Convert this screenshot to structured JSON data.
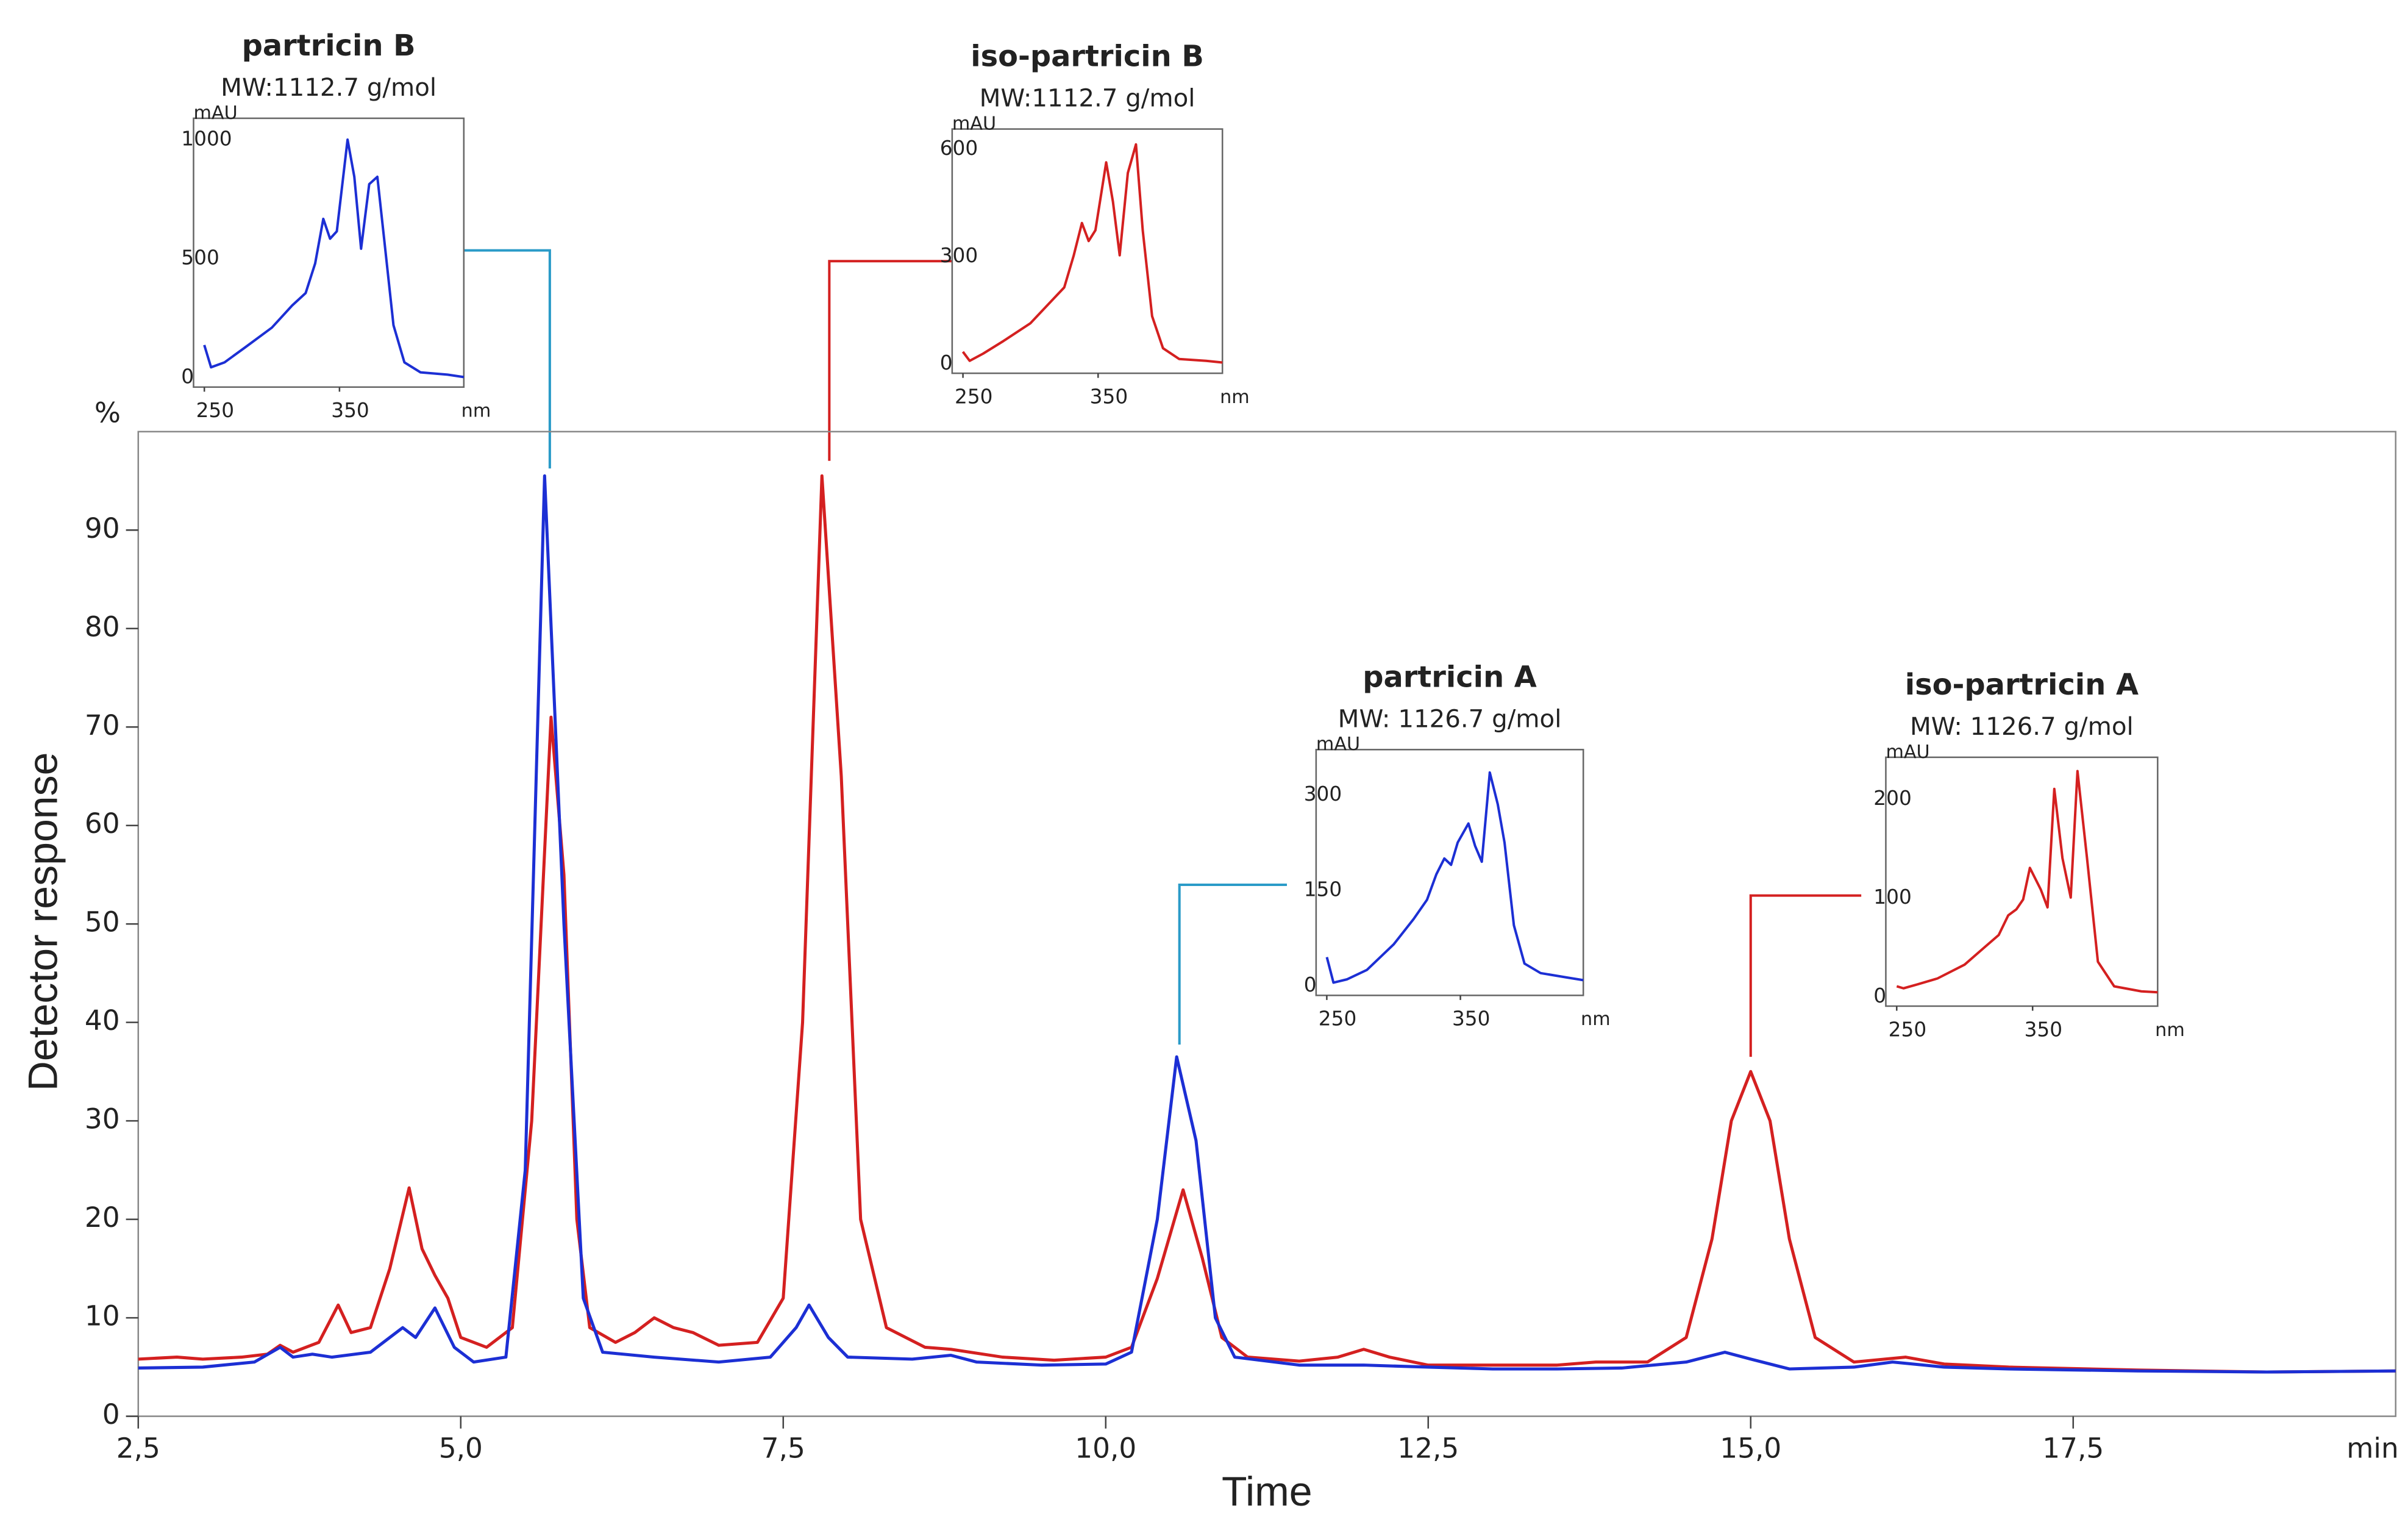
{
  "chart_data": [
    {
      "type": "line",
      "xlabel": "Time",
      "ylabel": "Detector response",
      "y_unit": "%",
      "x_unit": "min",
      "xlim": [
        2.5,
        20
      ],
      "ylim": [
        0,
        100
      ],
      "xticks": [
        {
          "value": 2.5,
          "label": "2,5"
        },
        {
          "value": 5,
          "label": "5,0"
        },
        {
          "value": 7.5,
          "label": "7,5"
        },
        {
          "value": 10,
          "label": "10,0"
        },
        {
          "value": 12.5,
          "label": "12,5"
        },
        {
          "value": 15,
          "label": "15,0"
        },
        {
          "value": 17.5,
          "label": "17,5"
        }
      ],
      "yticks": [
        0,
        10,
        20,
        30,
        40,
        50,
        60,
        70,
        80,
        90
      ],
      "series": [
        {
          "color": "#d42020",
          "x": [
            2.5,
            2.8,
            3.0,
            3.3,
            3.5,
            3.6,
            3.7,
            3.9,
            4.05,
            4.15,
            4.3,
            4.45,
            4.6,
            4.7,
            4.8,
            4.9,
            5.0,
            5.2,
            5.4,
            5.55,
            5.7,
            5.8,
            5.9,
            6.0,
            6.2,
            6.35,
            6.5,
            6.65,
            6.8,
            7.0,
            7.3,
            7.5,
            7.65,
            7.8,
            7.95,
            8.1,
            8.3,
            8.6,
            8.8,
            9.2,
            9.6,
            10.0,
            10.2,
            10.4,
            10.6,
            10.75,
            10.9,
            11.1,
            11.5,
            11.8,
            12.0,
            12.2,
            12.5,
            13.0,
            13.5,
            13.8,
            14.2,
            14.5,
            14.7,
            14.85,
            15.0,
            15.15,
            15.3,
            15.5,
            15.8,
            16.2,
            16.5,
            17,
            18,
            19,
            20
          ],
          "values": [
            5.8,
            6,
            5.8,
            6,
            6.3,
            7.2,
            6.5,
            7.5,
            11.3,
            8.5,
            9,
            15,
            23.2,
            17,
            14.3,
            12,
            8,
            7,
            9,
            30,
            71,
            55,
            20,
            9,
            7.5,
            8.5,
            10,
            9,
            8.5,
            7.2,
            7.5,
            12,
            40,
            95.5,
            65,
            20,
            9,
            7,
            6.8,
            6,
            5.7,
            6,
            7,
            14,
            23,
            16,
            8,
            6,
            5.6,
            6,
            6.8,
            6,
            5.2,
            5.2,
            5.2,
            5.5,
            5.5,
            8,
            18,
            30,
            35,
            30,
            18,
            8,
            5.5,
            6,
            5.3,
            5,
            4.7,
            4.5,
            4.6
          ]
        },
        {
          "color": "#1c2fd4",
          "x": [
            2.5,
            3.0,
            3.4,
            3.6,
            3.7,
            3.85,
            4.0,
            4.3,
            4.55,
            4.65,
            4.8,
            4.95,
            5.1,
            5.35,
            5.5,
            5.65,
            5.8,
            5.95,
            6.1,
            6.5,
            7.0,
            7.4,
            7.6,
            7.7,
            7.85,
            8.0,
            8.5,
            8.8,
            9.0,
            9.5,
            10.0,
            10.2,
            10.4,
            10.55,
            10.7,
            10.85,
            11.0,
            11.5,
            12,
            12.5,
            13,
            13.5,
            14,
            14.5,
            14.8,
            15.0,
            15.3,
            15.8,
            16.1,
            16.5,
            17,
            18,
            19,
            20
          ],
          "values": [
            4.9,
            5,
            5.5,
            7,
            6,
            6.3,
            6,
            6.5,
            9,
            8,
            11,
            7,
            5.5,
            6,
            25,
            95.5,
            50,
            12,
            6.5,
            6,
            5.5,
            6,
            9,
            11.3,
            8,
            6,
            5.8,
            6.2,
            5.5,
            5.2,
            5.3,
            6.5,
            20,
            36.5,
            28,
            10,
            6,
            5.2,
            5.2,
            5,
            4.8,
            4.8,
            4.9,
            5.5,
            6.5,
            5.8,
            4.8,
            5,
            5.5,
            5,
            4.8,
            4.6,
            4.5,
            4.6
          ]
        }
      ]
    },
    {
      "type": "line",
      "title": "partricin B",
      "subtitle": "MW:1112.7 g/mol",
      "ylabel": "mAU",
      "xlabel": "nm",
      "color": "#1c2fd4",
      "title_color": "#1f62d0",
      "xlim": [
        242,
        442
      ],
      "ylim": [
        0,
        1130
      ],
      "xticks": [
        250,
        350
      ],
      "yticks": [
        0,
        500,
        1000
      ],
      "x": [
        250,
        255,
        265,
        280,
        300,
        315,
        325,
        332,
        338,
        343,
        348,
        356,
        361,
        366,
        372,
        378,
        383,
        390,
        398,
        410,
        430,
        442
      ],
      "values": [
        177,
        83,
        104,
        166,
        250,
        343,
        395,
        520,
        707,
        624,
        655,
        1040,
        884,
        582,
        853,
        884,
        624,
        260,
        104,
        62,
        52,
        42
      ]
    },
    {
      "type": "line",
      "title": "iso-partricin B",
      "subtitle": "MW:1112.7 g/mol",
      "ylabel": "mAU",
      "xlabel": "nm",
      "color": "#d42020",
      "title_color": "#d42020",
      "xlim": [
        242,
        442
      ],
      "ylim": [
        0,
        683
      ],
      "xticks": [
        250,
        350
      ],
      "yticks": [
        0,
        300,
        600
      ],
      "x": [
        250,
        255,
        265,
        280,
        300,
        315,
        325,
        332,
        338,
        343,
        348,
        356,
        361,
        366,
        372,
        378,
        383,
        390,
        398,
        410,
        430,
        442
      ],
      "values": [
        60,
        35,
        55,
        90,
        140,
        200,
        240,
        330,
        420,
        370,
        400,
        590,
        480,
        330,
        560,
        640,
        400,
        160,
        70,
        40,
        35,
        30
      ]
    },
    {
      "type": "line",
      "title": "partricin A",
      "subtitle": "MW: 1126.7 g/mol",
      "ylabel": "mAU",
      "xlabel": "nm",
      "color": "#1c2fd4",
      "title_color": "#1f62d0",
      "xlim": [
        242,
        442
      ],
      "ylim": [
        0,
        386
      ],
      "xticks": [
        250,
        350
      ],
      "yticks": [
        0,
        150,
        300
      ],
      "x": [
        250,
        255,
        265,
        280,
        300,
        315,
        325,
        332,
        338,
        343,
        348,
        356,
        361,
        366,
        372,
        378,
        383,
        390,
        398,
        410,
        430,
        442
      ],
      "values": [
        60,
        20,
        25,
        40,
        80,
        120,
        150,
        190,
        215,
        205,
        240,
        270,
        235,
        210,
        350,
        300,
        240,
        110,
        50,
        35,
        28,
        24
      ]
    },
    {
      "type": "line",
      "title": "iso-partricin A",
      "subtitle": "MW: 1126.7 g/mol",
      "ylabel": "mAU",
      "xlabel": "nm",
      "color": "#d42020",
      "title_color": "#d42020",
      "xlim": [
        242,
        442
      ],
      "ylim": [
        0,
        252
      ],
      "xticks": [
        250,
        350
      ],
      "yticks": [
        0,
        100,
        200
      ],
      "x": [
        250,
        255,
        265,
        280,
        300,
        315,
        325,
        332,
        338,
        343,
        348,
        356,
        361,
        366,
        372,
        378,
        383,
        390,
        398,
        410,
        430,
        442
      ],
      "values": [
        20,
        18,
        22,
        28,
        42,
        60,
        72,
        92,
        98,
        108,
        140,
        118,
        100,
        220,
        150,
        110,
        238,
        150,
        45,
        20,
        15,
        14
      ]
    }
  ]
}
